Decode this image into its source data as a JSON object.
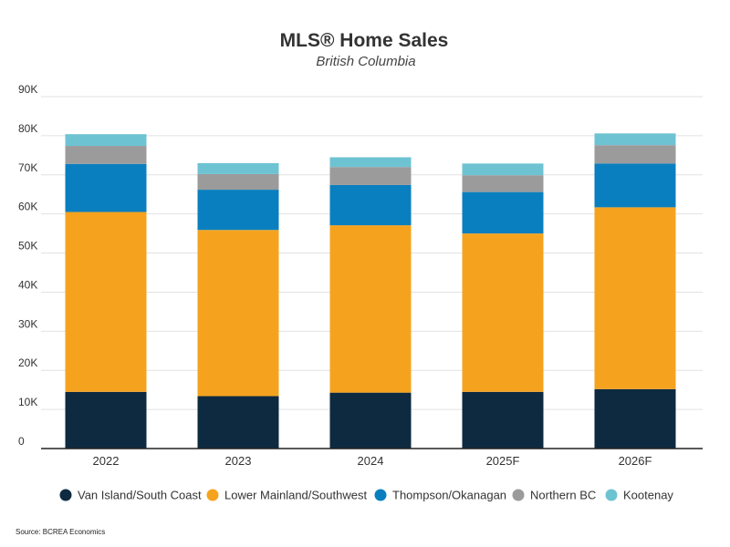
{
  "chart_data": {
    "type": "bar",
    "stacked": true,
    "title": "MLS® Home Sales",
    "subtitle": "British Columbia",
    "categories": [
      "2022",
      "2023",
      "2024",
      "2025F",
      "2026F"
    ],
    "series": [
      {
        "name": "Van Island/South Coast",
        "color": "#0e2a40",
        "values": [
          14500,
          13400,
          14300,
          14500,
          15200
        ]
      },
      {
        "name": "Lower Mainland/Southwest",
        "color": "#f5a31f",
        "values": [
          46000,
          42500,
          42800,
          40500,
          46500
        ]
      },
      {
        "name": "Thompson/Okanagan",
        "color": "#0a7fbf",
        "values": [
          12300,
          10300,
          10300,
          10600,
          11200
        ]
      },
      {
        "name": "Northern BC",
        "color": "#9b9b9b",
        "values": [
          4600,
          4000,
          4600,
          4300,
          4700
        ]
      },
      {
        "name": "Kootenay",
        "color": "#6ec3d3",
        "values": [
          3000,
          2800,
          2500,
          3000,
          3000
        ]
      }
    ],
    "ylim": [
      0,
      90000
    ],
    "yticks": [
      {
        "value": 0,
        "label": "0"
      },
      {
        "value": 10000,
        "label": "10K"
      },
      {
        "value": 20000,
        "label": "20K"
      },
      {
        "value": 30000,
        "label": "30K"
      },
      {
        "value": 40000,
        "label": "40K"
      },
      {
        "value": 50000,
        "label": "50K"
      },
      {
        "value": 60000,
        "label": "60K"
      },
      {
        "value": 70000,
        "label": "70K"
      },
      {
        "value": 80000,
        "label": "80K"
      },
      {
        "value": 90000,
        "label": "90K"
      }
    ],
    "xlabel": "",
    "ylabel": "",
    "grid": true,
    "legend_position": "bottom",
    "source": "Source: BCREA Economics"
  }
}
